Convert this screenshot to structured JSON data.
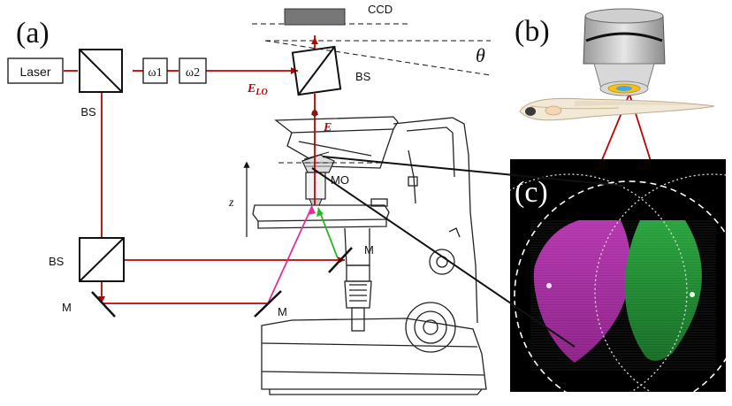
{
  "panels": {
    "a": "(a)",
    "b": "(b)",
    "c": "(c)"
  },
  "components": {
    "laser": "Laser",
    "omega1": "ω1",
    "omega2": "ω2",
    "bs_top_left": "BS",
    "bs_top_right": "BS",
    "bs_mid_left": "BS",
    "mirror_left": "M",
    "mirror_mid": "M",
    "mirror_right": "M",
    "ccd": "CCD",
    "theta": "θ",
    "e_lo": "E",
    "e_lo_sub": "LO",
    "e_field": "E",
    "mo": "MO",
    "z_axis": "z"
  },
  "colors": {
    "beam_red": "#c00000",
    "beam_magenta": "#e0309a",
    "beam_green": "#22bb22",
    "panel_c_background": "#000000",
    "lobe_magenta": "#a4289e",
    "lobe_green": "#1b8a2c"
  }
}
